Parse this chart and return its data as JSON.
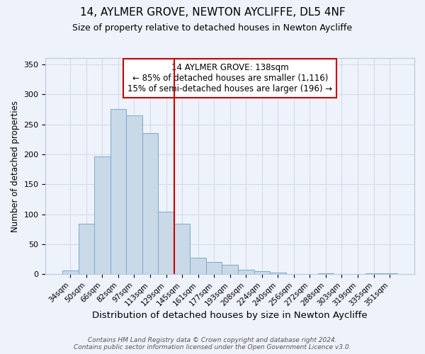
{
  "title": "14, AYLMER GROVE, NEWTON AYCLIFFE, DL5 4NF",
  "subtitle": "Size of property relative to detached houses in Newton Aycliffe",
  "xlabel": "Distribution of detached houses by size in Newton Aycliffe",
  "ylabel": "Number of detached properties",
  "bar_labels": [
    "34sqm",
    "50sqm",
    "66sqm",
    "82sqm",
    "97sqm",
    "113sqm",
    "129sqm",
    "145sqm",
    "161sqm",
    "177sqm",
    "193sqm",
    "208sqm",
    "224sqm",
    "240sqm",
    "256sqm",
    "272sqm",
    "288sqm",
    "303sqm",
    "319sqm",
    "335sqm",
    "351sqm"
  ],
  "bar_values": [
    6,
    84,
    196,
    275,
    265,
    236,
    104,
    84,
    28,
    20,
    16,
    7,
    5,
    3,
    1,
    0,
    2,
    0,
    1,
    2,
    2
  ],
  "bar_color": "#c9d9e8",
  "bar_edge_color": "#7aaac8",
  "background_color": "#eef2fa",
  "grid_color": "#d0d8ea",
  "vline_x_index": 6,
  "vline_color": "#cc0000",
  "annotation_line1": "14 AYLMER GROVE: 138sqm",
  "annotation_line2": "← 85% of detached houses are smaller (1,116)",
  "annotation_line3": "15% of semi-detached houses are larger (196) →",
  "annotation_box_color": "#ffffff",
  "annotation_border_color": "#cc0000",
  "footer_line1": "Contains HM Land Registry data © Crown copyright and database right 2024.",
  "footer_line2": "Contains public sector information licensed under the Open Government Licence v3.0.",
  "ylim": [
    0,
    360
  ],
  "title_fontsize": 11,
  "subtitle_fontsize": 9,
  "ylabel_fontsize": 8.5,
  "xlabel_fontsize": 9.5,
  "annotation_fontsize": 8.5,
  "tick_fontsize": 7.5,
  "footer_fontsize": 6.5
}
